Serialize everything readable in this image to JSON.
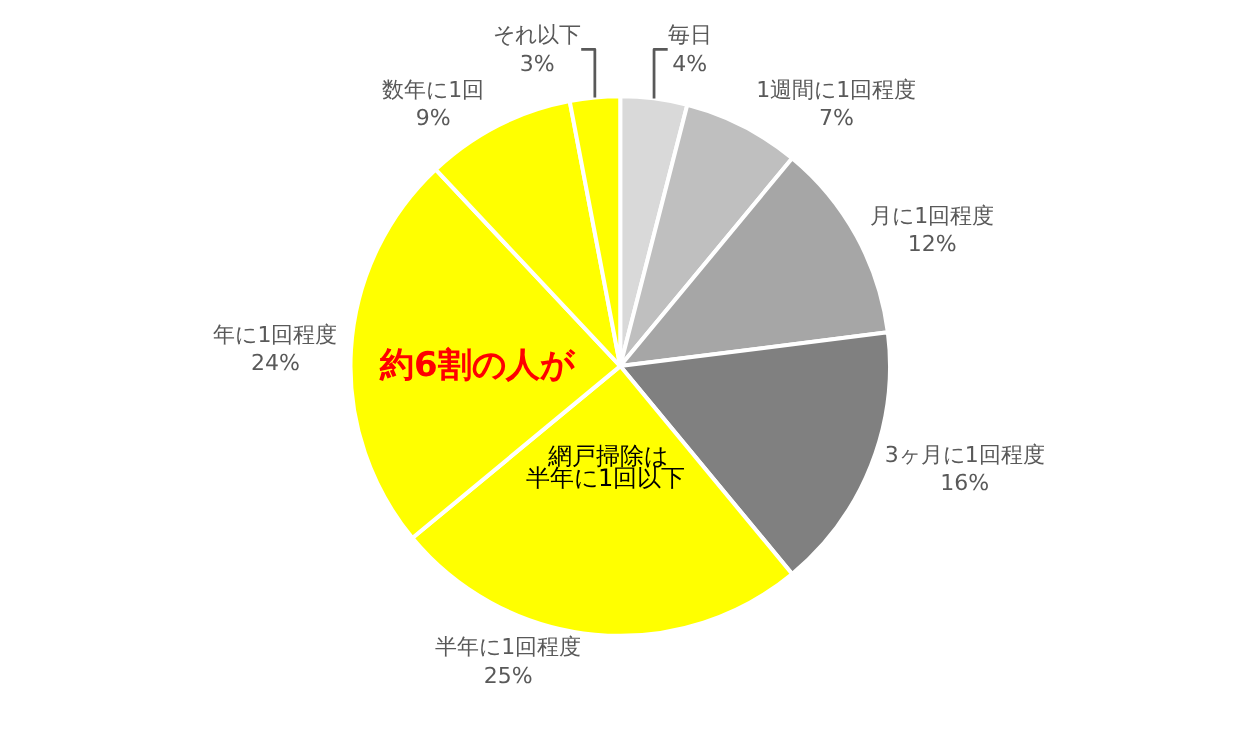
{
  "chart_data": {
    "type": "pie",
    "categories": [
      "毎日",
      "1週間に1回程度",
      "月に1回程度",
      "3ヶ月に1回程度",
      "半年に1回程度",
      "年に1回程度",
      "数年に1回",
      "それ以下"
    ],
    "values": [
      4,
      7,
      12,
      16,
      25,
      24,
      9,
      3
    ],
    "colors": [
      "#d9d9d9",
      "#bfbfbf",
      "#a6a6a6",
      "#808080",
      "#ffff00",
      "#ffff00",
      "#ffff00",
      "#ffff00"
    ],
    "value_labels": [
      "4%",
      "7%",
      "12%",
      "16%",
      "25%",
      "24%",
      "9%",
      "3%"
    ],
    "annotations": [
      "約6割の人が",
      "網戸掃除は",
      "半年に1回以下"
    ],
    "legend": false
  }
}
